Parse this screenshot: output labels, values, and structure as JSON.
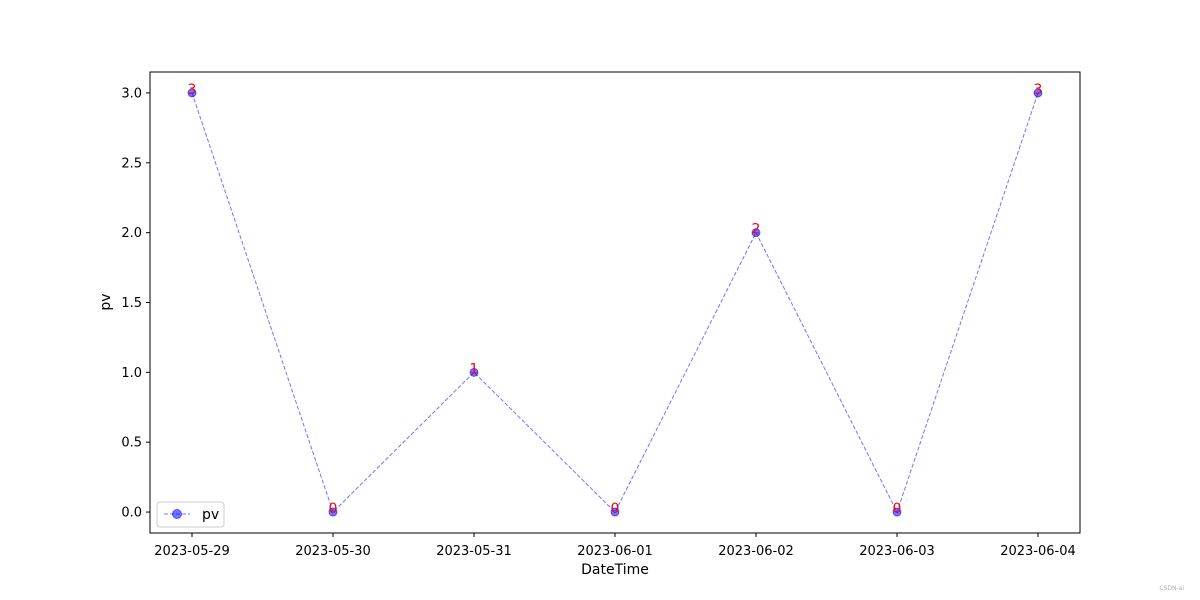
{
  "chart_data": {
    "type": "line",
    "xlabel": "DateTime",
    "ylabel": "pv",
    "categories": [
      "2023-05-29",
      "2023-05-30",
      "2023-05-31",
      "2023-06-01",
      "2023-06-02",
      "2023-06-03",
      "2023-06-04"
    ],
    "series": [
      {
        "name": "pv",
        "values": [
          3,
          0,
          1,
          0,
          2,
          0,
          3
        ],
        "color": "#0000ff",
        "line_style": "dashed",
        "marker": "circle"
      }
    ],
    "data_labels": [
      "3",
      "0",
      "1",
      "0",
      "2",
      "0",
      "3"
    ],
    "data_label_color": "#ff0000",
    "yticks": [
      0.0,
      0.5,
      1.0,
      1.5,
      2.0,
      2.5,
      3.0
    ],
    "ytick_labels": [
      "0.0",
      "0.5",
      "1.0",
      "1.5",
      "2.0",
      "2.5",
      "3.0"
    ],
    "ylim": [
      -0.15,
      3.15
    ],
    "grid": false,
    "legend_position": "lower-left"
  },
  "watermark": "CSDN-ai"
}
